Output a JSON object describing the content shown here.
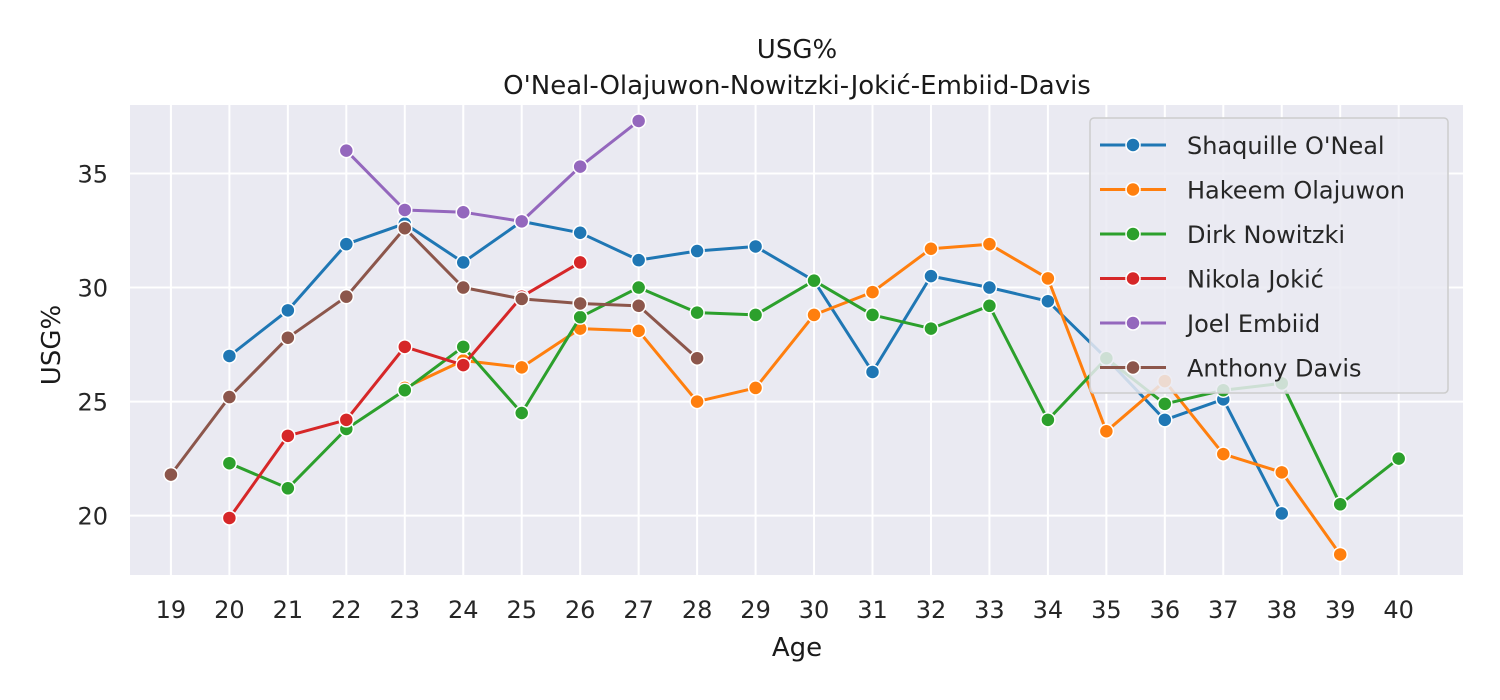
{
  "chart_data": {
    "type": "line",
    "title": "USG%",
    "subtitle": "O'Neal-Olajuwon-Nowitzki-Jokić-Embiid-Davis",
    "xlabel": "Age",
    "ylabel": "USG%",
    "xlim": [
      18.3,
      41.1
    ],
    "ylim": [
      17.4,
      38.0
    ],
    "x_ticks": [
      19,
      20,
      21,
      22,
      23,
      24,
      25,
      26,
      27,
      28,
      29,
      30,
      31,
      32,
      33,
      34,
      35,
      36,
      37,
      38,
      39,
      40
    ],
    "y_ticks": [
      20,
      25,
      30,
      35
    ],
    "grid": true,
    "legend_position": "top-right",
    "series": [
      {
        "name": "Shaquille O'Neal",
        "color": "#1f77b4",
        "points": [
          [
            20,
            27.0
          ],
          [
            21,
            29.0
          ],
          [
            22,
            31.9
          ],
          [
            23,
            32.8
          ],
          [
            24,
            31.1
          ],
          [
            25,
            32.9
          ],
          [
            26,
            32.4
          ],
          [
            27,
            31.2
          ],
          [
            28,
            31.6
          ],
          [
            29,
            31.8
          ],
          [
            30,
            30.3
          ],
          [
            31,
            26.3
          ],
          [
            32,
            30.5
          ],
          [
            33,
            30.0
          ],
          [
            34,
            29.4
          ],
          [
            35,
            26.9
          ],
          [
            36,
            24.2
          ],
          [
            37,
            25.1
          ],
          [
            38,
            20.1
          ]
        ]
      },
      {
        "name": "Hakeem Olajuwon",
        "color": "#ff7f0e",
        "points": [
          [
            23,
            25.6
          ],
          [
            24,
            26.8
          ],
          [
            25,
            26.5
          ],
          [
            26,
            28.2
          ],
          [
            27,
            28.1
          ],
          [
            28,
            25.0
          ],
          [
            29,
            25.6
          ],
          [
            30,
            28.8
          ],
          [
            31,
            29.8
          ],
          [
            32,
            31.7
          ],
          [
            33,
            31.9
          ],
          [
            34,
            30.4
          ],
          [
            35,
            23.7
          ],
          [
            36,
            25.9
          ],
          [
            37,
            22.7
          ],
          [
            38,
            21.9
          ],
          [
            39,
            18.3
          ]
        ]
      },
      {
        "name": "Dirk Nowitzki",
        "color": "#2ca02c",
        "points": [
          [
            20,
            22.3
          ],
          [
            21,
            21.2
          ],
          [
            22,
            23.8
          ],
          [
            23,
            25.5
          ],
          [
            24,
            27.4
          ],
          [
            25,
            24.5
          ],
          [
            26,
            28.7
          ],
          [
            27,
            30.0
          ],
          [
            28,
            28.9
          ],
          [
            29,
            28.8
          ],
          [
            30,
            30.3
          ],
          [
            31,
            28.8
          ],
          [
            32,
            28.2
          ],
          [
            33,
            29.2
          ],
          [
            34,
            24.2
          ],
          [
            35,
            26.9
          ],
          [
            36,
            24.9
          ],
          [
            37,
            25.5
          ],
          [
            38,
            25.8
          ],
          [
            39,
            20.5
          ],
          [
            40,
            22.5
          ]
        ]
      },
      {
        "name": "Nikola Jokić",
        "color": "#d62728",
        "points": [
          [
            20,
            19.9
          ],
          [
            21,
            23.5
          ],
          [
            22,
            24.2
          ],
          [
            23,
            27.4
          ],
          [
            24,
            26.6
          ],
          [
            25,
            29.6
          ],
          [
            26,
            31.1
          ]
        ]
      },
      {
        "name": "Joel Embiid",
        "color": "#9467bd",
        "points": [
          [
            22,
            36.0
          ],
          [
            23,
            33.4
          ],
          [
            24,
            33.3
          ],
          [
            25,
            32.9
          ],
          [
            26,
            35.3
          ],
          [
            27,
            37.3
          ]
        ]
      },
      {
        "name": "Anthony Davis",
        "color": "#8c564b",
        "points": [
          [
            19,
            21.8
          ],
          [
            20,
            25.2
          ],
          [
            21,
            27.8
          ],
          [
            22,
            29.6
          ],
          [
            23,
            32.6
          ],
          [
            24,
            30.0
          ],
          [
            25,
            29.5
          ],
          [
            26,
            29.3
          ],
          [
            27,
            29.2
          ],
          [
            28,
            26.9
          ]
        ]
      }
    ]
  }
}
